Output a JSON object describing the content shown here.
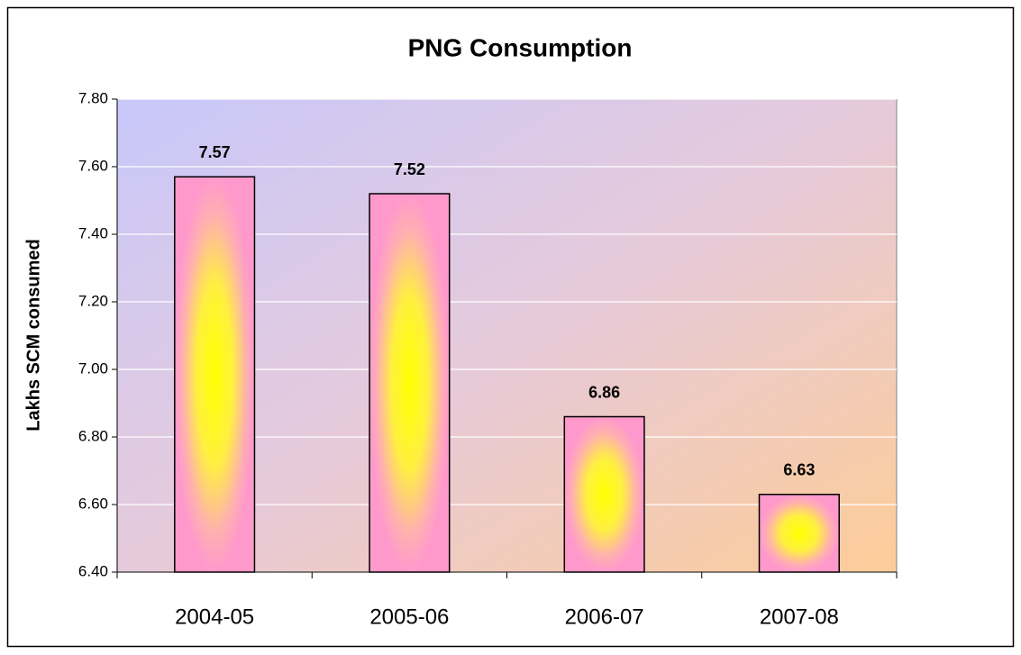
{
  "chart_data": {
    "type": "bar",
    "title": "PNG Consumption",
    "y_label": "Lakhs SCM consumed",
    "categories": [
      "2004-05",
      "2005-06",
      "2006-07",
      "2007-08"
    ],
    "values": [
      7.57,
      7.52,
      6.86,
      6.63
    ],
    "ylim": [
      6.4,
      7.8
    ],
    "yticks": [
      {
        "value": 6.4,
        "label": "6.40"
      },
      {
        "value": 6.6,
        "label": "6.60"
      },
      {
        "value": 6.8,
        "label": "6.80"
      },
      {
        "value": 7.0,
        "label": "7.00"
      },
      {
        "value": 7.2,
        "label": "7.20"
      },
      {
        "value": 7.4,
        "label": "7.40"
      },
      {
        "value": 7.6,
        "label": "7.60"
      },
      {
        "value": 7.8,
        "label": "7.80"
      }
    ],
    "grid": true
  }
}
